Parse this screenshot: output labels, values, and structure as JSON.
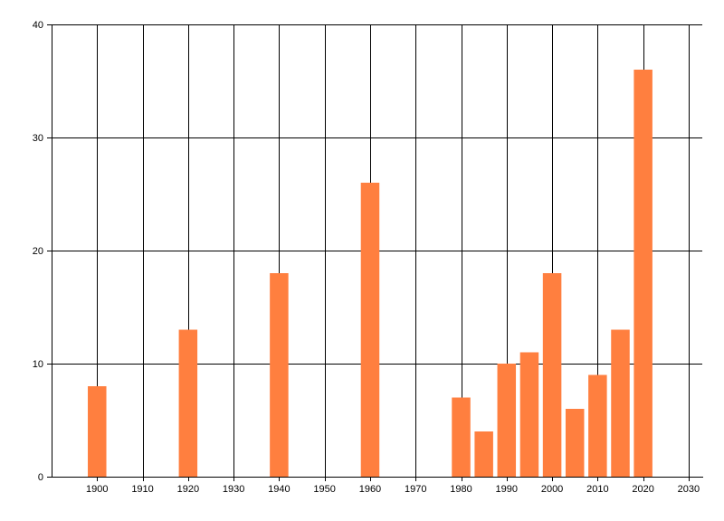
{
  "chart_data": {
    "type": "bar",
    "x": [
      1900,
      1920,
      1940,
      1960,
      1980,
      1985,
      1990,
      1995,
      2000,
      2005,
      2010,
      2015,
      2020
    ],
    "values": [
      8,
      13,
      18,
      26,
      7,
      4,
      10,
      11,
      18,
      6,
      9,
      13,
      36
    ],
    "xlim": [
      1890,
      2033
    ],
    "ylim": [
      0,
      40
    ],
    "x_ticks": [
      1900,
      1910,
      1920,
      1930,
      1940,
      1950,
      1960,
      1970,
      1980,
      1990,
      2000,
      2010,
      2020,
      2030
    ],
    "y_ticks": [
      0,
      10,
      20,
      30,
      40
    ],
    "x_tick_labels": [
      "1900",
      "1910",
      "1920",
      "1930",
      "1940",
      "1950",
      "1960",
      "1970",
      "1980",
      "1990",
      "2000",
      "2010",
      "2020",
      "2030"
    ],
    "y_tick_labels": [
      "0",
      "10",
      "20",
      "30",
      "40"
    ],
    "bar_color": "#ff7f3f",
    "grid": true,
    "title": "",
    "xlabel": "",
    "ylabel": ""
  }
}
